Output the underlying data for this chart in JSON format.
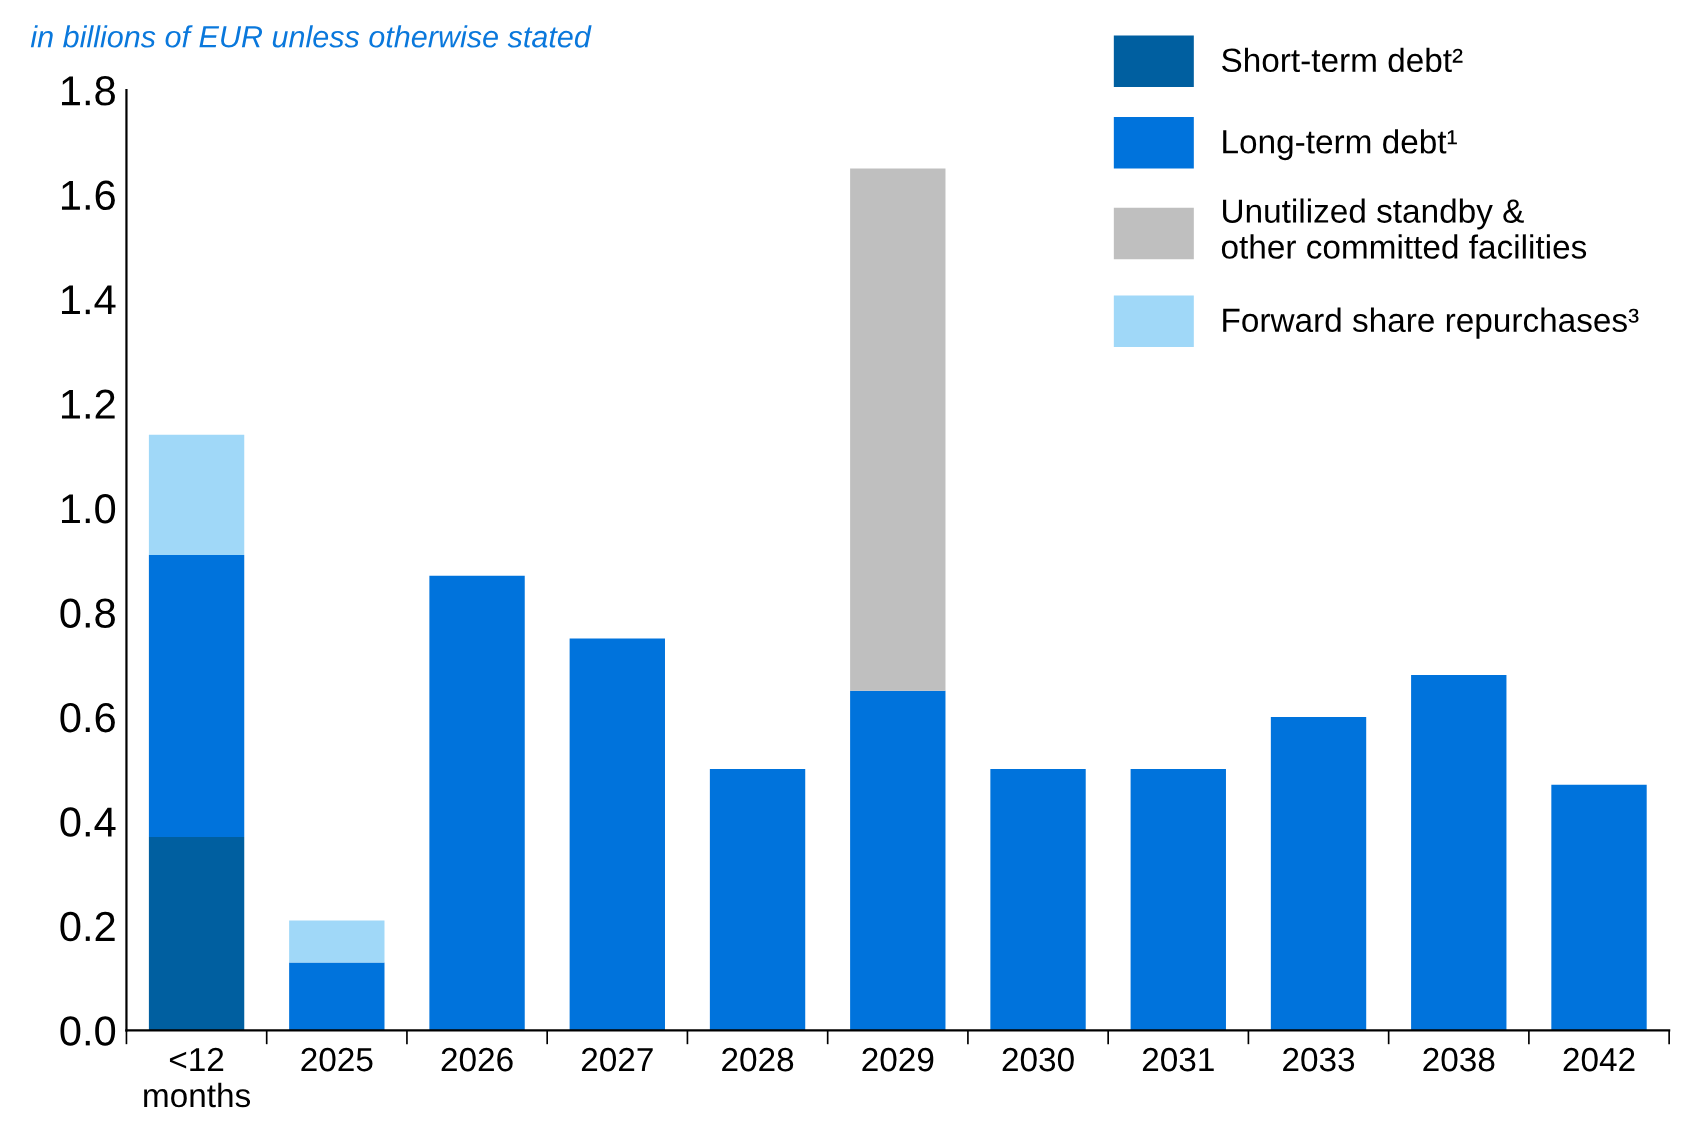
{
  "chart_data": {
    "type": "bar",
    "stacked": true,
    "subtitle": "in billions of EUR unless otherwise stated",
    "categories": [
      "<12\nmonths",
      "2025",
      "2026",
      "2027",
      "2028",
      "2029",
      "2030",
      "2031",
      "2033",
      "2038",
      "2042"
    ],
    "series": [
      {
        "name": "Short-term debt²",
        "color": "#005fa0",
        "values": [
          0.37,
          null,
          null,
          null,
          null,
          null,
          null,
          null,
          null,
          null,
          null
        ]
      },
      {
        "name": "Long-term debt¹",
        "color": "#0073dc",
        "values": [
          0.54,
          0.13,
          0.87,
          0.75,
          0.5,
          0.65,
          0.5,
          0.5,
          0.6,
          0.68,
          0.47
        ]
      },
      {
        "name": "Unutilized standby &\nother committed facilities",
        "color": "#bfbfbf",
        "values": [
          null,
          null,
          null,
          null,
          null,
          1.0,
          null,
          null,
          null,
          null,
          null
        ]
      },
      {
        "name": "Forward share repurchases³",
        "color": "#a0d8f8",
        "values": [
          0.23,
          0.08,
          null,
          null,
          null,
          null,
          null,
          null,
          null,
          null,
          null
        ]
      }
    ],
    "ylim": [
      0,
      1.8
    ],
    "yticks": [
      {
        "value": 0,
        "label": "0.0"
      },
      0.2,
      0.4,
      0.6,
      0.8,
      {
        "value": 1,
        "label": "1.0"
      },
      1.2,
      1.4,
      1.6,
      1.8
    ],
    "grid": false,
    "legend": "top right"
  }
}
